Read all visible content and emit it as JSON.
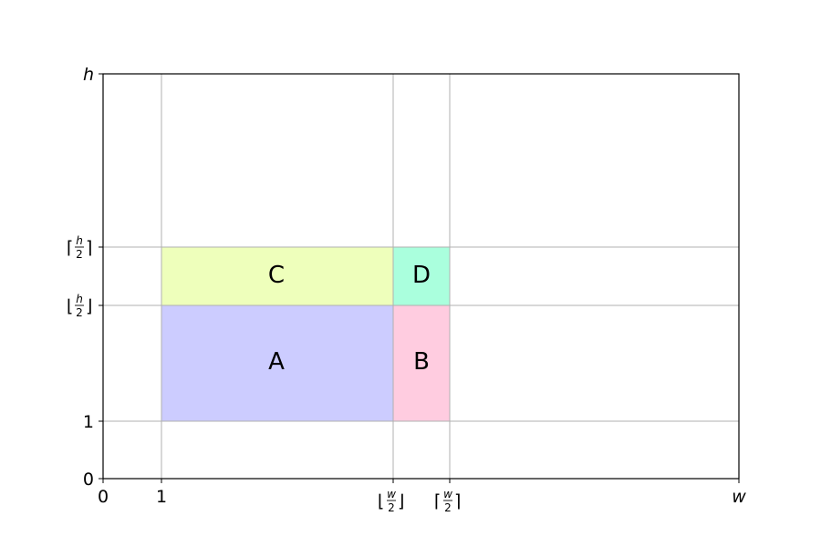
{
  "diagram": {
    "regions": [
      {
        "id": "A",
        "label": "A",
        "x": [
          "1",
          "⌊w/2⌋"
        ],
        "y": [
          "1",
          "⌊h/2⌋"
        ],
        "color": "#ccccff"
      },
      {
        "id": "B",
        "label": "B",
        "x": [
          "⌊w/2⌋",
          "⌈w/2⌉"
        ],
        "y": [
          "1",
          "⌊h/2⌋"
        ],
        "color": "#ffcce0"
      },
      {
        "id": "C",
        "label": "C",
        "x": [
          "1",
          "⌊w/2⌋"
        ],
        "y": [
          "⌊h/2⌋",
          "⌈h/2⌉"
        ],
        "color": "#eeffbb"
      },
      {
        "id": "D",
        "label": "D",
        "x": [
          "⌊w/2⌋",
          "⌈w/2⌉"
        ],
        "y": [
          "⌊h/2⌋",
          "⌈h/2⌉"
        ],
        "color": "#aaffdd"
      }
    ],
    "x_ticks": {
      "zero": "0",
      "one": "1",
      "floor_w": {
        "num": "w",
        "den": "2"
      },
      "ceil_w": {
        "num": "w",
        "den": "2"
      },
      "w": "w"
    },
    "y_ticks": {
      "zero": "0",
      "one": "1",
      "floor_h": {
        "num": "h",
        "den": "2"
      },
      "ceil_h": {
        "num": "h",
        "den": "2"
      },
      "h": "h"
    },
    "grid": true
  }
}
